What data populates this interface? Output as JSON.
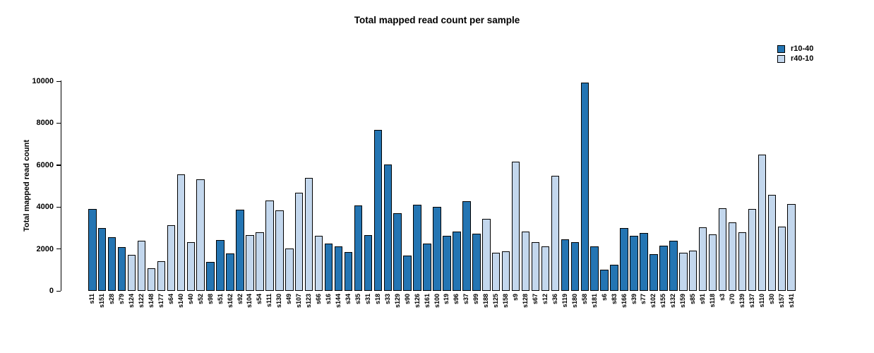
{
  "title": "Total mapped read count per sample",
  "chart_data": {
    "type": "bar",
    "title": "Total mapped read count per sample",
    "xlabel": "",
    "ylabel": "Total mapped read count",
    "ylim": [
      0,
      10000
    ],
    "yticks": [
      0,
      2000,
      4000,
      6000,
      8000,
      10000
    ],
    "grid": false,
    "legend_position": "top-right",
    "groups": [
      {
        "name": "r10-40",
        "color": "#2475B3"
      },
      {
        "name": "r40-10",
        "color": "#C3D7ED"
      }
    ],
    "bars": [
      {
        "sample": "s11",
        "value": 3890,
        "group": "r10-40"
      },
      {
        "sample": "s151",
        "value": 2990,
        "group": "r10-40"
      },
      {
        "sample": "s28",
        "value": 2570,
        "group": "r10-40"
      },
      {
        "sample": "s79",
        "value": 2090,
        "group": "r10-40"
      },
      {
        "sample": "s124",
        "value": 1720,
        "group": "r40-10"
      },
      {
        "sample": "s122",
        "value": 2400,
        "group": "r40-10"
      },
      {
        "sample": "s148",
        "value": 1090,
        "group": "r40-10"
      },
      {
        "sample": "s177",
        "value": 1400,
        "group": "r40-10"
      },
      {
        "sample": "s64",
        "value": 3120,
        "group": "r40-10"
      },
      {
        "sample": "s140",
        "value": 5570,
        "group": "r40-10"
      },
      {
        "sample": "s40",
        "value": 2330,
        "group": "r40-10"
      },
      {
        "sample": "s52",
        "value": 5330,
        "group": "r40-10"
      },
      {
        "sample": "s98",
        "value": 1370,
        "group": "r10-40"
      },
      {
        "sample": "s51",
        "value": 2440,
        "group": "r10-40"
      },
      {
        "sample": "s162",
        "value": 1780,
        "group": "r10-40"
      },
      {
        "sample": "s92",
        "value": 3870,
        "group": "r10-40"
      },
      {
        "sample": "s104",
        "value": 2650,
        "group": "r40-10"
      },
      {
        "sample": "s54",
        "value": 2790,
        "group": "r40-10"
      },
      {
        "sample": "s111",
        "value": 4300,
        "group": "r40-10"
      },
      {
        "sample": "s130",
        "value": 3830,
        "group": "r40-10"
      },
      {
        "sample": "s49",
        "value": 2010,
        "group": "r40-10"
      },
      {
        "sample": "s107",
        "value": 4670,
        "group": "r40-10"
      },
      {
        "sample": "s123",
        "value": 5400,
        "group": "r40-10"
      },
      {
        "sample": "s66",
        "value": 2640,
        "group": "r40-10"
      },
      {
        "sample": "s16",
        "value": 2260,
        "group": "r10-40"
      },
      {
        "sample": "s144",
        "value": 2110,
        "group": "r10-40"
      },
      {
        "sample": "s34",
        "value": 1840,
        "group": "r10-40"
      },
      {
        "sample": "s35",
        "value": 4090,
        "group": "r10-40"
      },
      {
        "sample": "s31",
        "value": 2670,
        "group": "r10-40"
      },
      {
        "sample": "s18",
        "value": 7660,
        "group": "r10-40"
      },
      {
        "sample": "s33",
        "value": 6040,
        "group": "r10-40"
      },
      {
        "sample": "s129",
        "value": 3710,
        "group": "r10-40"
      },
      {
        "sample": "s90",
        "value": 1700,
        "group": "r10-40"
      },
      {
        "sample": "s126",
        "value": 4120,
        "group": "r10-40"
      },
      {
        "sample": "s161",
        "value": 2250,
        "group": "r10-40"
      },
      {
        "sample": "s100",
        "value": 4000,
        "group": "r10-40"
      },
      {
        "sample": "s19",
        "value": 2620,
        "group": "r10-40"
      },
      {
        "sample": "s96",
        "value": 2840,
        "group": "r10-40"
      },
      {
        "sample": "s37",
        "value": 4290,
        "group": "r10-40"
      },
      {
        "sample": "s99",
        "value": 2730,
        "group": "r10-40"
      },
      {
        "sample": "s188",
        "value": 3450,
        "group": "r40-10"
      },
      {
        "sample": "s125",
        "value": 1830,
        "group": "r40-10"
      },
      {
        "sample": "s158",
        "value": 1900,
        "group": "r40-10"
      },
      {
        "sample": "s9",
        "value": 6150,
        "group": "r40-10"
      },
      {
        "sample": "s128",
        "value": 2830,
        "group": "r40-10"
      },
      {
        "sample": "s67",
        "value": 2320,
        "group": "r40-10"
      },
      {
        "sample": "s12",
        "value": 2110,
        "group": "r40-10"
      },
      {
        "sample": "s36",
        "value": 5480,
        "group": "r40-10"
      },
      {
        "sample": "s119",
        "value": 2450,
        "group": "r10-40"
      },
      {
        "sample": "s180",
        "value": 2340,
        "group": "r10-40"
      },
      {
        "sample": "s58",
        "value": 9940,
        "group": "r10-40"
      },
      {
        "sample": "s181",
        "value": 2130,
        "group": "r10-40"
      },
      {
        "sample": "s6",
        "value": 1010,
        "group": "r10-40"
      },
      {
        "sample": "s83",
        "value": 1250,
        "group": "r10-40"
      },
      {
        "sample": "s166",
        "value": 2980,
        "group": "r10-40"
      },
      {
        "sample": "s39",
        "value": 2610,
        "group": "r10-40"
      },
      {
        "sample": "s77",
        "value": 2760,
        "group": "r10-40"
      },
      {
        "sample": "s102",
        "value": 1740,
        "group": "r10-40"
      },
      {
        "sample": "s155",
        "value": 2160,
        "group": "r10-40"
      },
      {
        "sample": "s132",
        "value": 2390,
        "group": "r10-40"
      },
      {
        "sample": "s159",
        "value": 1830,
        "group": "r40-10"
      },
      {
        "sample": "s85",
        "value": 1920,
        "group": "r40-10"
      },
      {
        "sample": "s91",
        "value": 3030,
        "group": "r40-10"
      },
      {
        "sample": "s118",
        "value": 2700,
        "group": "r40-10"
      },
      {
        "sample": "s3",
        "value": 3950,
        "group": "r40-10"
      },
      {
        "sample": "s70",
        "value": 3260,
        "group": "r40-10"
      },
      {
        "sample": "s139",
        "value": 2800,
        "group": "r40-10"
      },
      {
        "sample": "s137",
        "value": 3900,
        "group": "r40-10"
      },
      {
        "sample": "s110",
        "value": 6490,
        "group": "r40-10"
      },
      {
        "sample": "s30",
        "value": 4580,
        "group": "r40-10"
      },
      {
        "sample": "s157",
        "value": 3050,
        "group": "r40-10"
      },
      {
        "sample": "s141",
        "value": 4150,
        "group": "r40-10"
      }
    ]
  }
}
